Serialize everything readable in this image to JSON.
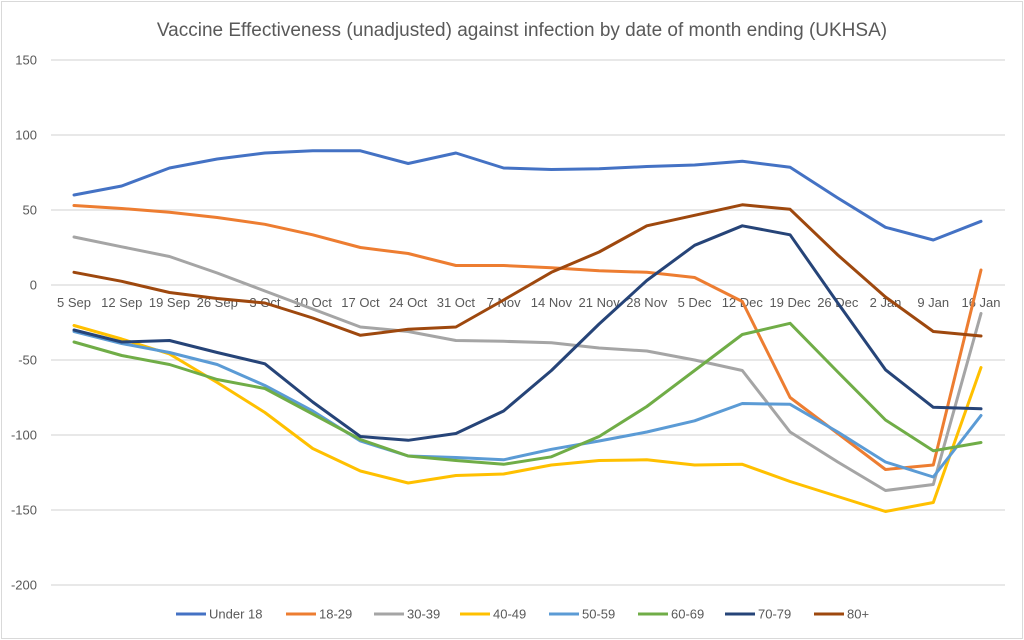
{
  "chart_data": {
    "type": "line",
    "title": "Vaccine Effectiveness (unadjusted) against infection by date of month ending (UKHSA)",
    "xlabel": "",
    "ylabel": "",
    "ylim": [
      -200,
      150
    ],
    "yticks": [
      150,
      100,
      50,
      0,
      -50,
      -100,
      -150,
      -200
    ],
    "grid": true,
    "legend_position": "bottom",
    "categories": [
      "5 Sep",
      "12 Sep",
      "19 Sep",
      "26 Sep",
      "3 Oct",
      "10 Oct",
      "17 Oct",
      "24 Oct",
      "31 Oct",
      "7 Nov",
      "14 Nov",
      "21 Nov",
      "28 Nov",
      "5 Dec",
      "12 Dec",
      "19 Dec",
      "26 Dec",
      "2 Jan",
      "9 Jan",
      "16 Jan"
    ],
    "series": [
      {
        "name": "Under 18",
        "color": "#4472c4",
        "values": [
          60,
          66,
          78,
          84,
          88,
          89.5,
          89.5,
          81,
          88,
          78,
          77,
          77.5,
          79,
          80,
          82.5,
          78.5,
          58,
          38.5,
          30,
          42.5
        ]
      },
      {
        "name": "18-29",
        "color": "#ed7d31",
        "values": [
          53,
          51,
          48.5,
          45,
          40.5,
          33.5,
          25,
          21,
          13,
          13,
          11.5,
          9.5,
          8.5,
          5,
          -11,
          -75,
          -99,
          -123,
          -120,
          10
        ]
      },
      {
        "name": "30-39",
        "color": "#a5a5a5",
        "values": [
          32,
          25.5,
          19,
          8,
          -4,
          -16,
          -28,
          -31,
          -37,
          -37.5,
          -38.5,
          -42,
          -44,
          -50,
          -57,
          -98,
          -118,
          -137,
          -133,
          -19
        ]
      },
      {
        "name": "40-49",
        "color": "#ffc000",
        "values": [
          -27,
          -36,
          -46,
          -65,
          -85,
          -109,
          -124,
          -132,
          -127,
          -126,
          -120,
          -117,
          -116.5,
          -120,
          -119.5,
          -131,
          -141,
          -151,
          -145,
          -55
        ]
      },
      {
        "name": "50-59",
        "color": "#5b9bd5",
        "values": [
          -31,
          -39,
          -45,
          -53,
          -67,
          -84,
          -104,
          -114,
          -115,
          -116.5,
          -109.5,
          -104,
          -98,
          -90.5,
          -79,
          -79.5,
          -98,
          -118,
          -128,
          -87
        ]
      },
      {
        "name": "60-69",
        "color": "#70ad47",
        "values": [
          -38,
          -47,
          -53,
          -63,
          -69,
          -86,
          -103,
          -114,
          -117,
          -119.5,
          -114.5,
          -101,
          -81,
          -57,
          -33,
          -25.5,
          -58,
          -90,
          -110.5,
          -105
        ]
      },
      {
        "name": "70-79",
        "color": "#264478",
        "values": [
          -30,
          -38,
          -37,
          -45,
          -52.5,
          -78,
          -101,
          -103.5,
          -99,
          -84,
          -57,
          -26,
          3,
          26.5,
          39.5,
          33.5,
          -12,
          -56.5,
          -81.5,
          -82.5
        ]
      },
      {
        "name": "80+",
        "color": "#9e480e",
        "values": [
          8.5,
          2.5,
          -5,
          -9,
          -12,
          -22,
          -33.5,
          -29.5,
          -28,
          -10,
          8.5,
          22,
          39.5,
          46.5,
          53.5,
          50.5,
          20,
          -8,
          -31,
          -34
        ]
      }
    ]
  }
}
